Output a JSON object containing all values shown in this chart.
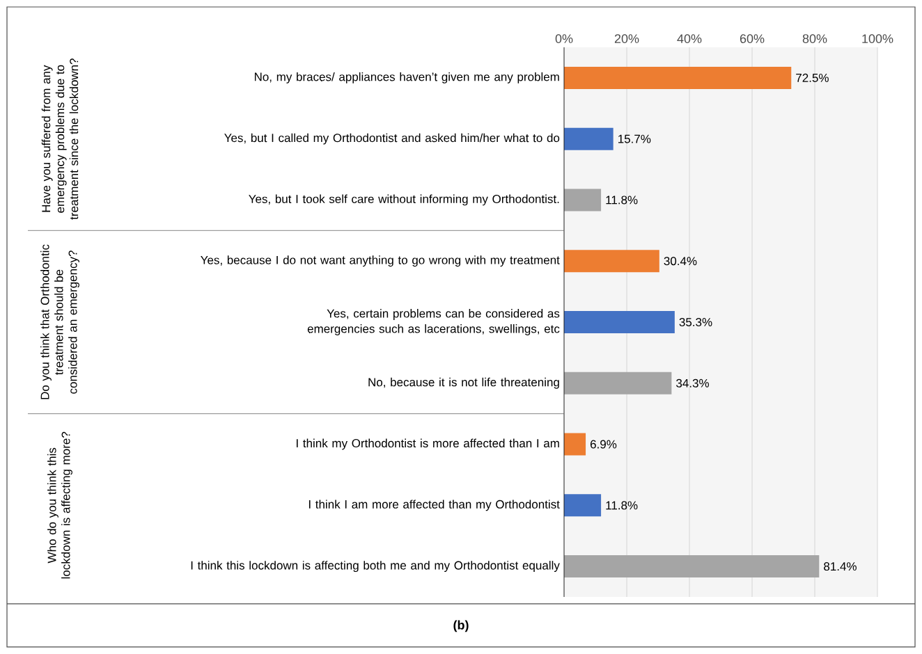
{
  "chart_data": {
    "type": "bar",
    "orientation": "horizontal",
    "categories": [
      "No, my braces/ appliances haven’t given me any problem",
      "Yes, but I called my Orthodontist and asked him/her what to do",
      "Yes, but I took self care without informing my Orthodontist.",
      "Yes, because I do not want anything to go wrong with my treatment",
      "Yes, certain problems can be considered as emergencies such as  lacerations, swellings, etc",
      "No, because it is not life threatening",
      "I think my Orthodontist is more affected than I am",
      "I think I am more affected than my Orthodontist",
      "I think this lockdown is affecting both me and my Orthodontist equally"
    ],
    "values": [
      72.5,
      15.7,
      11.8,
      30.4,
      35.3,
      34.3,
      6.9,
      11.8,
      81.4
    ],
    "colors": [
      "#ed7d31",
      "#4472c4",
      "#a5a5a5",
      "#ed7d31",
      "#4472c4",
      "#a5a5a5",
      "#ed7d31",
      "#4472c4",
      "#a5a5a5"
    ],
    "value_labels": [
      "72.5%",
      "15.7%",
      "11.8%",
      "30.4%",
      "35.3%",
      "34.3%",
      "6.9%",
      "11.8%",
      "81.4%"
    ],
    "xlim": [
      0,
      100
    ],
    "xticks": [
      {
        "value": 0,
        "label": "0%"
      },
      {
        "value": 20,
        "label": "20%"
      },
      {
        "value": 40,
        "label": "40%"
      },
      {
        "value": 60,
        "label": "60%"
      },
      {
        "value": 80,
        "label": "80%"
      },
      {
        "value": 100,
        "label": "100%"
      }
    ],
    "grid": "x",
    "annotations": [
      "Have you suffered from any emergency problems due to treatment since the lockdown?",
      "Do you think that Orthodontic treatment should be considered an emergency?",
      "Who do you think this lockdown is affecting more?",
      "(b)"
    ]
  }
}
